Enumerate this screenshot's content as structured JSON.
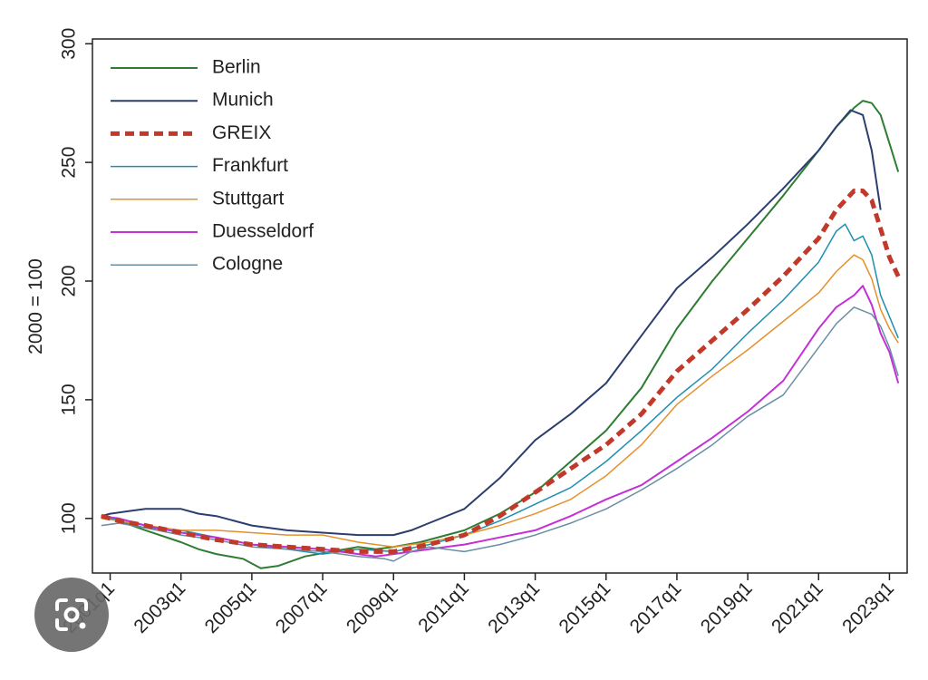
{
  "chart_data": {
    "type": "line",
    "ylabel": "2000 = 100",
    "xlabel": "",
    "title": "",
    "xlim": [
      2000.5,
      2023.5
    ],
    "ylim": [
      77,
      302
    ],
    "y_ticks": [
      100,
      150,
      200,
      250,
      300
    ],
    "x_ticks": [
      {
        "x": 2001,
        "label": "2001q1"
      },
      {
        "x": 2003,
        "label": "2003q1"
      },
      {
        "x": 2005,
        "label": "2005q1"
      },
      {
        "x": 2007,
        "label": "2007q1"
      },
      {
        "x": 2009,
        "label": "2009q1"
      },
      {
        "x": 2011,
        "label": "2011q1"
      },
      {
        "x": 2013,
        "label": "2013q1"
      },
      {
        "x": 2015,
        "label": "2015q1"
      },
      {
        "x": 2017,
        "label": "2017q1"
      },
      {
        "x": 2019,
        "label": "2019q1"
      },
      {
        "x": 2021,
        "label": "2021q1"
      },
      {
        "x": 2023,
        "label": "2023q1"
      }
    ],
    "legend_position": "top-left",
    "series": [
      {
        "name": "Berlin",
        "color": "#2e7d32",
        "width": 2,
        "dash": "",
        "points": [
          [
            2000.75,
            101
          ],
          [
            2001.25,
            99
          ],
          [
            2002,
            95
          ],
          [
            2003,
            90
          ],
          [
            2003.5,
            87
          ],
          [
            2004,
            85
          ],
          [
            2004.75,
            83
          ],
          [
            2005.25,
            79
          ],
          [
            2005.75,
            80
          ],
          [
            2006.5,
            84
          ],
          [
            2007.25,
            86
          ],
          [
            2008,
            88
          ],
          [
            2008.5,
            87
          ],
          [
            2009,
            88
          ],
          [
            2009.75,
            90
          ],
          [
            2010.5,
            93
          ],
          [
            2011,
            95
          ],
          [
            2012,
            102
          ],
          [
            2013,
            111
          ],
          [
            2014,
            124
          ],
          [
            2015,
            137
          ],
          [
            2016,
            155
          ],
          [
            2017,
            180
          ],
          [
            2018,
            200
          ],
          [
            2019,
            218
          ],
          [
            2020,
            236
          ],
          [
            2021,
            255
          ],
          [
            2021.5,
            265
          ],
          [
            2022,
            273
          ],
          [
            2022.25,
            276
          ],
          [
            2022.5,
            275
          ],
          [
            2022.75,
            270
          ],
          [
            2023,
            258
          ],
          [
            2023.25,
            246
          ]
        ]
      },
      {
        "name": "Munich",
        "color": "#2c3e6e",
        "width": 2,
        "dash": "",
        "points": [
          [
            2000.75,
            101
          ],
          [
            2001,
            102
          ],
          [
            2001.5,
            103
          ],
          [
            2002,
            104
          ],
          [
            2003,
            104
          ],
          [
            2003.5,
            102
          ],
          [
            2004,
            101
          ],
          [
            2004.5,
            99
          ],
          [
            2005,
            97
          ],
          [
            2005.5,
            96
          ],
          [
            2006,
            95
          ],
          [
            2007,
            94
          ],
          [
            2008,
            93
          ],
          [
            2009,
            93
          ],
          [
            2009.5,
            95
          ],
          [
            2010,
            98
          ],
          [
            2011,
            104
          ],
          [
            2012,
            117
          ],
          [
            2013,
            133
          ],
          [
            2014,
            144
          ],
          [
            2015,
            157
          ],
          [
            2016,
            177
          ],
          [
            2017,
            197
          ],
          [
            2018,
            210
          ],
          [
            2019,
            224
          ],
          [
            2020,
            239
          ],
          [
            2021,
            255
          ],
          [
            2021.5,
            265
          ],
          [
            2021.9,
            272
          ],
          [
            2022.25,
            270
          ],
          [
            2022.5,
            255
          ],
          [
            2022.75,
            230
          ]
        ]
      },
      {
        "name": "Frankfurt",
        "color": "#1f8fb0",
        "width": 1.5,
        "dash": "",
        "points": [
          [
            2000.75,
            101
          ],
          [
            2001.25,
            99
          ],
          [
            2002,
            96
          ],
          [
            2003,
            95
          ],
          [
            2004,
            92
          ],
          [
            2005,
            89
          ],
          [
            2006,
            87
          ],
          [
            2007,
            85
          ],
          [
            2008,
            87
          ],
          [
            2009,
            86
          ],
          [
            2010,
            89
          ],
          [
            2011,
            93
          ],
          [
            2012,
            99
          ],
          [
            2013,
            106
          ],
          [
            2014,
            113
          ],
          [
            2015,
            124
          ],
          [
            2016,
            137
          ],
          [
            2017,
            151
          ],
          [
            2018,
            163
          ],
          [
            2019,
            178
          ],
          [
            2020,
            192
          ],
          [
            2021,
            208
          ],
          [
            2021.5,
            221
          ],
          [
            2021.75,
            224
          ],
          [
            2022,
            217
          ],
          [
            2022.25,
            219
          ],
          [
            2022.5,
            211
          ],
          [
            2022.75,
            194
          ],
          [
            2023,
            185
          ],
          [
            2023.25,
            176
          ]
        ]
      },
      {
        "name": "Stuttgart",
        "color": "#e5902a",
        "width": 1.5,
        "dash": "",
        "points": [
          [
            2000.75,
            100
          ],
          [
            2001.25,
            99
          ],
          [
            2002,
            97
          ],
          [
            2003,
            95
          ],
          [
            2004,
            95
          ],
          [
            2005,
            94
          ],
          [
            2006,
            93
          ],
          [
            2007,
            93
          ],
          [
            2008,
            90
          ],
          [
            2009,
            88
          ],
          [
            2010,
            90
          ],
          [
            2011,
            93
          ],
          [
            2012,
            97
          ],
          [
            2013,
            102
          ],
          [
            2014,
            108
          ],
          [
            2015,
            118
          ],
          [
            2016,
            131
          ],
          [
            2017,
            148
          ],
          [
            2018,
            160
          ],
          [
            2019,
            171
          ],
          [
            2020,
            183
          ],
          [
            2021,
            195
          ],
          [
            2021.5,
            204
          ],
          [
            2022,
            211
          ],
          [
            2022.25,
            209
          ],
          [
            2022.5,
            201
          ],
          [
            2022.75,
            188
          ],
          [
            2023,
            180
          ],
          [
            2023.25,
            174
          ]
        ]
      },
      {
        "name": "Duesseldorf",
        "color": "#c42fd6",
        "width": 2,
        "dash": "",
        "points": [
          [
            2000.75,
            101
          ],
          [
            2001.25,
            100
          ],
          [
            2002,
            97
          ],
          [
            2003,
            94
          ],
          [
            2004,
            92
          ],
          [
            2005,
            89
          ],
          [
            2006,
            88
          ],
          [
            2007,
            87
          ],
          [
            2008,
            85
          ],
          [
            2008.5,
            84
          ],
          [
            2009,
            85
          ],
          [
            2010,
            87
          ],
          [
            2011,
            89
          ],
          [
            2012,
            92
          ],
          [
            2013,
            95
          ],
          [
            2014,
            101
          ],
          [
            2015,
            108
          ],
          [
            2016,
            114
          ],
          [
            2017,
            124
          ],
          [
            2018,
            134
          ],
          [
            2019,
            145
          ],
          [
            2020,
            158
          ],
          [
            2021,
            180
          ],
          [
            2021.5,
            189
          ],
          [
            2022,
            194
          ],
          [
            2022.25,
            198
          ],
          [
            2022.5,
            190
          ],
          [
            2022.75,
            178
          ],
          [
            2023,
            170
          ],
          [
            2023.25,
            157
          ]
        ]
      },
      {
        "name": "Cologne",
        "color": "#6a8fa3",
        "width": 1.5,
        "dash": "",
        "points": [
          [
            2000.75,
            97
          ],
          [
            2001.25,
            98
          ],
          [
            2002,
            96
          ],
          [
            2003,
            93
          ],
          [
            2004,
            91
          ],
          [
            2005,
            88
          ],
          [
            2006,
            87
          ],
          [
            2007,
            86
          ],
          [
            2008,
            84
          ],
          [
            2008.75,
            83
          ],
          [
            2009,
            82
          ],
          [
            2009.5,
            86
          ],
          [
            2010,
            88
          ],
          [
            2011,
            86
          ],
          [
            2012,
            89
          ],
          [
            2013,
            93
          ],
          [
            2014,
            98
          ],
          [
            2015,
            104
          ],
          [
            2016,
            112
          ],
          [
            2017,
            121
          ],
          [
            2018,
            131
          ],
          [
            2019,
            143
          ],
          [
            2020,
            152
          ],
          [
            2021,
            172
          ],
          [
            2021.5,
            182
          ],
          [
            2022,
            189
          ],
          [
            2022.5,
            186
          ],
          [
            2022.75,
            181
          ],
          [
            2023,
            172
          ],
          [
            2023.25,
            160
          ]
        ]
      },
      {
        "name": "GREIX",
        "color": "#c0392b",
        "width": 5,
        "dash": "10,6",
        "points": [
          [
            2000.75,
            101
          ],
          [
            2001.25,
            99
          ],
          [
            2002,
            97
          ],
          [
            2003,
            94
          ],
          [
            2004,
            91
          ],
          [
            2005,
            89
          ],
          [
            2006,
            88
          ],
          [
            2007,
            87
          ],
          [
            2008,
            86
          ],
          [
            2009,
            86
          ],
          [
            2010,
            89
          ],
          [
            2011,
            93
          ],
          [
            2012,
            101
          ],
          [
            2013,
            111
          ],
          [
            2014,
            121
          ],
          [
            2015,
            131
          ],
          [
            2016,
            144
          ],
          [
            2017,
            162
          ],
          [
            2018,
            175
          ],
          [
            2019,
            188
          ],
          [
            2020,
            202
          ],
          [
            2021,
            218
          ],
          [
            2021.5,
            230
          ],
          [
            2022,
            238
          ],
          [
            2022.25,
            238
          ],
          [
            2022.5,
            234
          ],
          [
            2022.75,
            222
          ],
          [
            2023,
            210
          ],
          [
            2023.25,
            202
          ]
        ]
      }
    ],
    "legend": [
      {
        "name": "Berlin",
        "color": "#2e7d32",
        "width": 2,
        "dash": ""
      },
      {
        "name": "Munich",
        "color": "#2c3e6e",
        "width": 2,
        "dash": ""
      },
      {
        "name": "GREIX",
        "color": "#c0392b",
        "width": 5,
        "dash": "10,6"
      },
      {
        "name": "Frankfurt",
        "color": "#1f8fb0",
        "width": 1.5,
        "dash": ""
      },
      {
        "name": "Stuttgart",
        "color": "#e5902a",
        "width": 1.5,
        "dash": ""
      },
      {
        "name": "Duesseldorf",
        "color": "#c42fd6",
        "width": 2,
        "dash": ""
      },
      {
        "name": "Cologne",
        "color": "#6a8fa3",
        "width": 1.5,
        "dash": ""
      }
    ]
  },
  "overlay": {
    "icon": "lens-search-icon"
  }
}
